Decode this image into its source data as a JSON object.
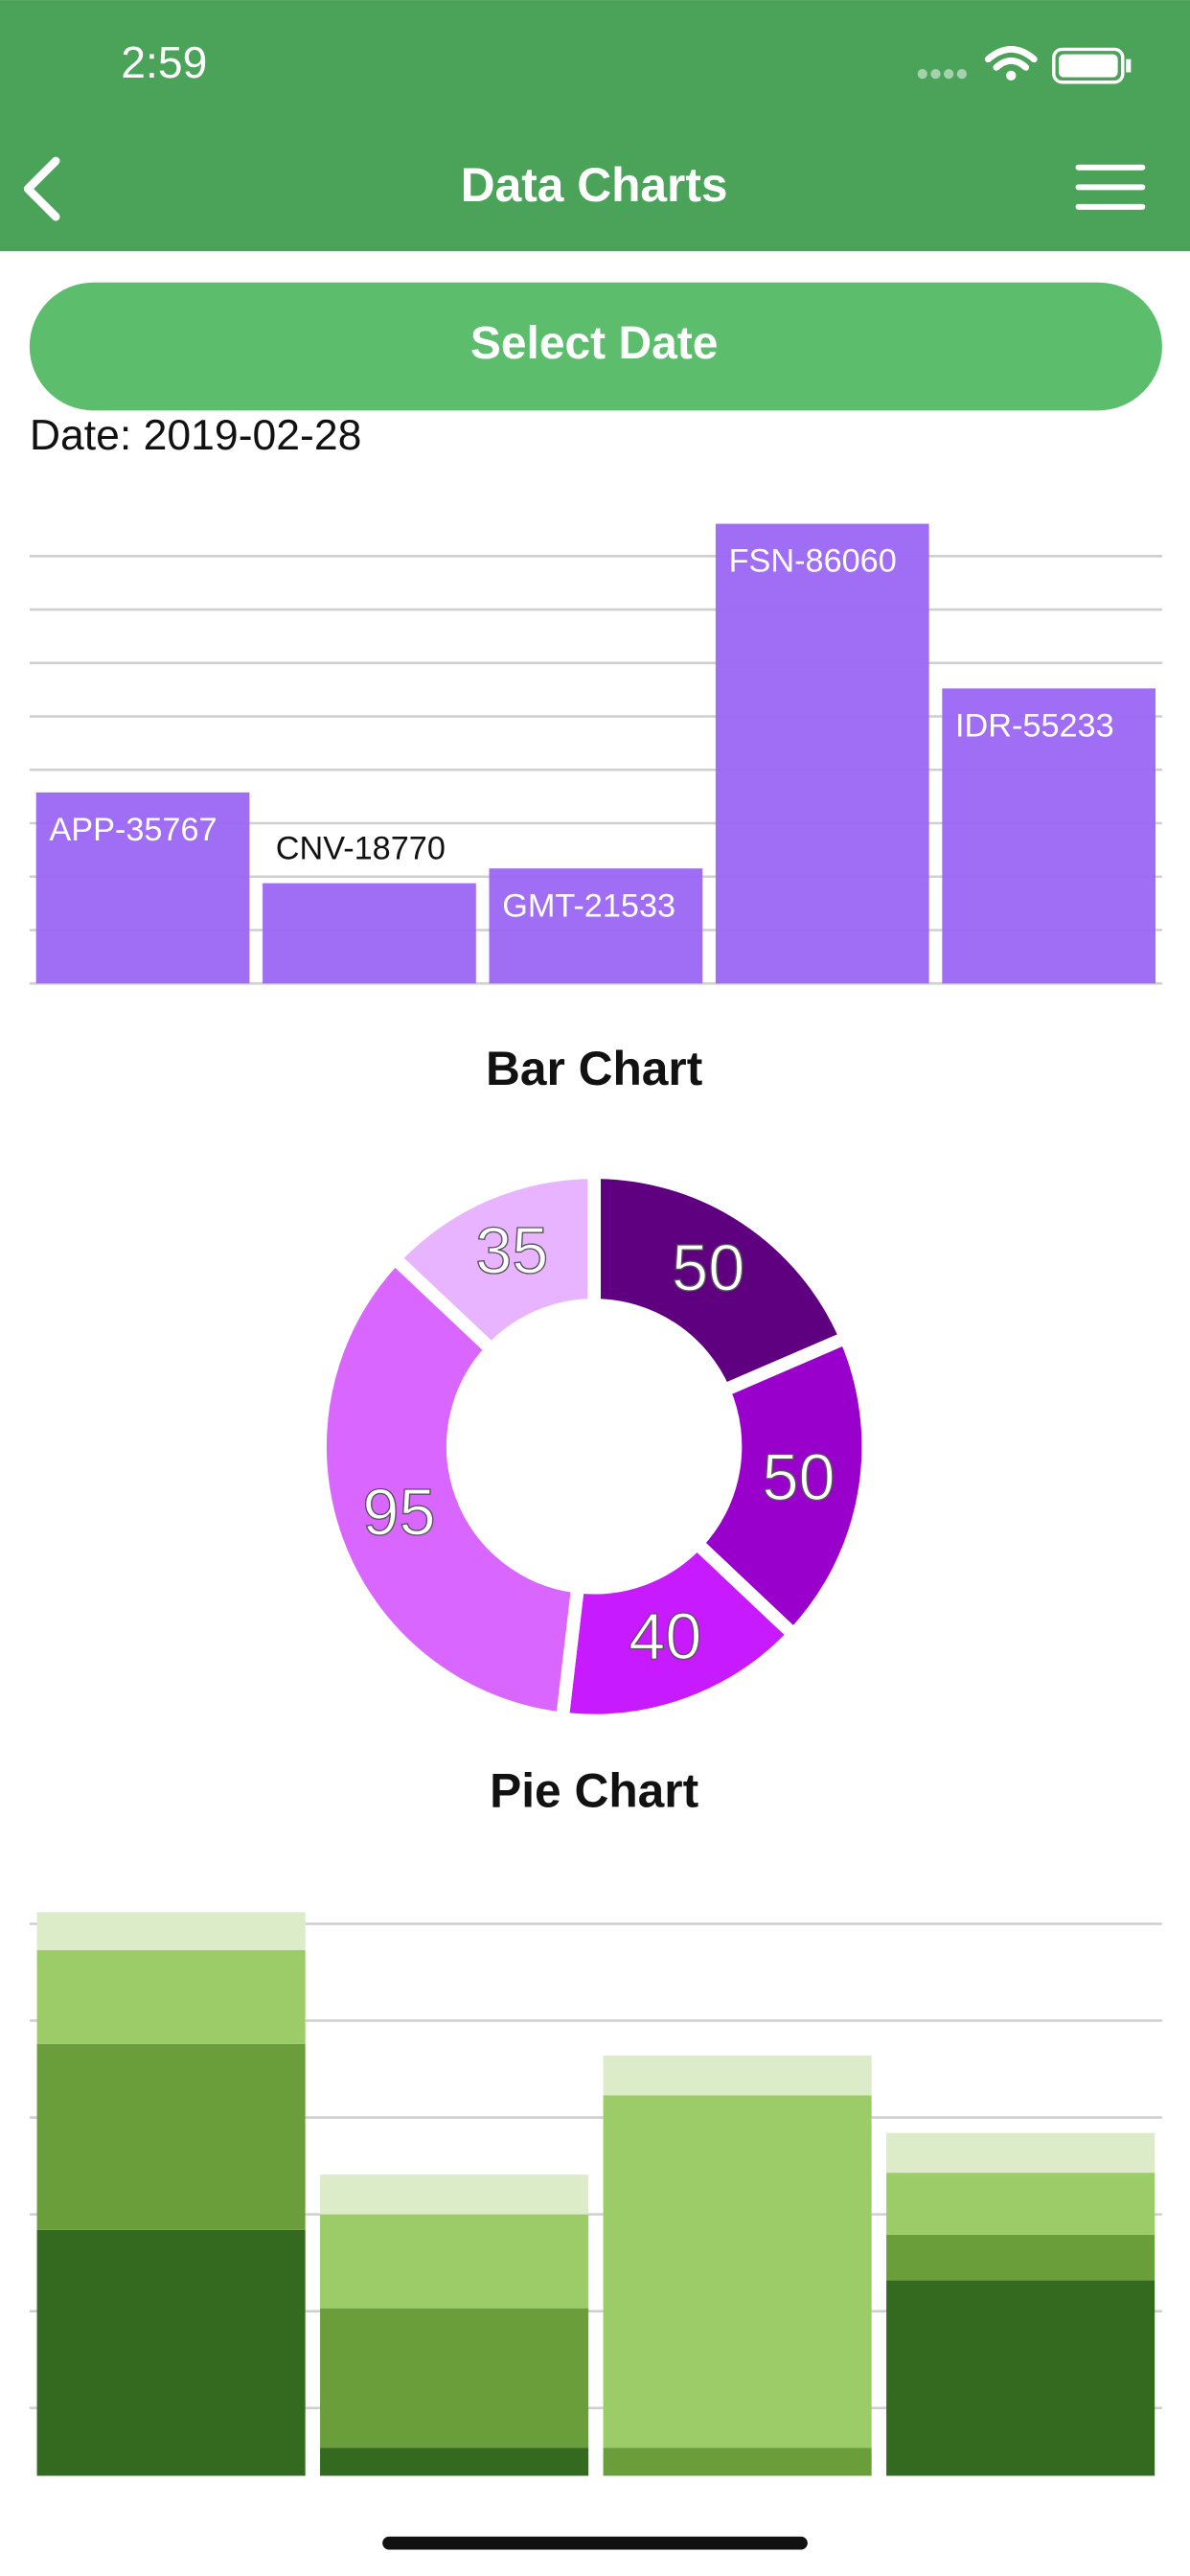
{
  "status_bar": {
    "time": "2:59"
  },
  "nav_bar": {
    "title": "Data Charts"
  },
  "select_button": {
    "label": "Select Date"
  },
  "date_label": "Date: 2019-02-28",
  "chart_data": [
    {
      "type": "bar",
      "title": "Bar Chart",
      "categories": [
        "APP-35767",
        "CNV-18770",
        "GMT-21533",
        "FSN-86060",
        "IDR-55233"
      ],
      "values": [
        35767,
        18770,
        21533,
        86060,
        55233
      ],
      "color": "#9b66f4",
      "ylim": [
        0,
        86060
      ],
      "yticks": [
        0,
        10000,
        20000,
        30000,
        40000,
        50000,
        60000,
        70000,
        80000
      ],
      "grid": true
    },
    {
      "type": "pie",
      "title": "Pie Chart",
      "donut": true,
      "values": [
        50,
        50,
        40,
        95,
        35
      ],
      "colors": [
        "#5e0080",
        "#9a00cc",
        "#c81aff",
        "#d966ff",
        "#e8b3ff"
      ]
    },
    {
      "type": "stacked_bar",
      "series": [
        {
          "color": "#346a1f",
          "values": [
            25.4,
            2.9,
            0,
            20.2
          ]
        },
        {
          "color": "#6a9e3a",
          "values": [
            19.2,
            14.4,
            2.9,
            4.7
          ]
        },
        {
          "color": "#9ccc68",
          "values": [
            9.7,
            9.7,
            36.4,
            6.4
          ]
        },
        {
          "color": "#dcecc9",
          "values": [
            3.9,
            4.1,
            4.1,
            4.1
          ]
        }
      ],
      "ylim": [
        0,
        59
      ],
      "yticks": [
        7,
        17,
        27,
        37,
        47,
        57
      ],
      "grid": true
    }
  ]
}
